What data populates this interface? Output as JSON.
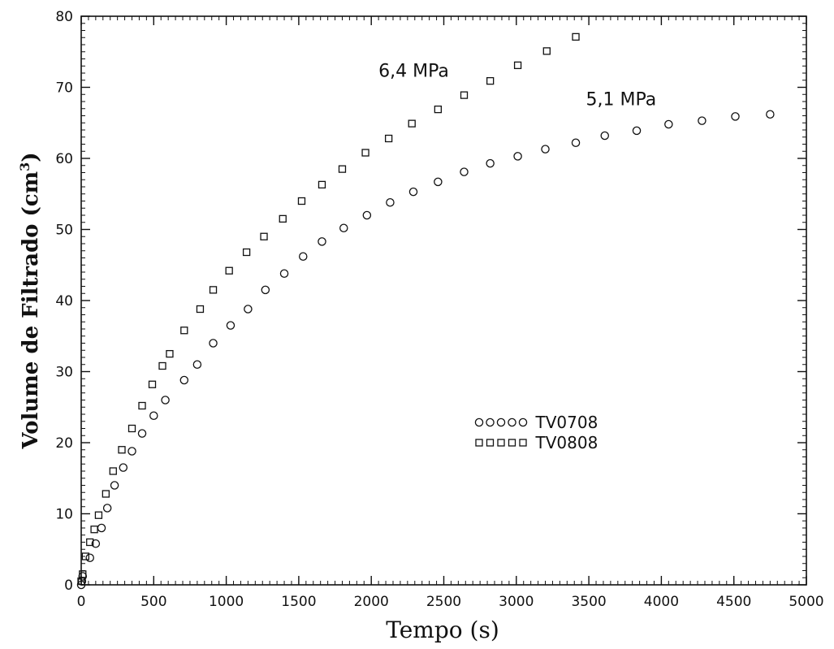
{
  "chart_data": {
    "type": "scatter",
    "title": "",
    "xlabel": "Tempo (s)",
    "ylabel": "Volume de Filtrado (cm3)",
    "ylabel_base": "Volume de Filtrado (cm",
    "ylabel_sup": "3",
    "ylabel_close": ")",
    "xlim": [
      0,
      5000
    ],
    "ylim": [
      0,
      80
    ],
    "xticks": [
      0,
      500,
      1000,
      1500,
      2000,
      2500,
      3000,
      3500,
      4000,
      4500,
      5000
    ],
    "yticks": [
      0,
      10,
      20,
      30,
      40,
      50,
      60,
      70,
      80
    ],
    "grid": false,
    "legend_position": "center-right",
    "annotations": [
      {
        "text": "6,4  MPa",
        "x": 2050,
        "y": 71.5
      },
      {
        "text": "5,1  MPa",
        "x": 3480,
        "y": 67.5
      }
    ],
    "series": [
      {
        "name": "TV0708",
        "legend_label": "TV0708",
        "marker": "circle",
        "x": [
          0,
          5,
          10,
          60,
          100,
          140,
          180,
          230,
          290,
          350,
          420,
          500,
          580,
          710,
          800,
          910,
          1030,
          1150,
          1270,
          1400,
          1530,
          1660,
          1810,
          1970,
          2130,
          2290,
          2460,
          2640,
          2820,
          3010,
          3200,
          3410,
          3610,
          3830,
          4050,
          4280,
          4510,
          4750
        ],
        "y": [
          0,
          0.5,
          1.2,
          3.8,
          5.8,
          8,
          10.8,
          14,
          16.5,
          18.8,
          21.3,
          23.8,
          26,
          28.8,
          31,
          34,
          36.5,
          38.8,
          41.5,
          43.8,
          46.2,
          48.3,
          50.2,
          52,
          53.8,
          55.3,
          56.7,
          58.1,
          59.3,
          60.3,
          61.3,
          62.2,
          63.2,
          63.9,
          64.8,
          65.3,
          65.9,
          66.2
        ]
      },
      {
        "name": "TV0808",
        "legend_label": "TV0808",
        "marker": "square",
        "x": [
          0,
          10,
          30,
          60,
          90,
          120,
          170,
          220,
          280,
          350,
          420,
          490,
          560,
          610,
          710,
          820,
          910,
          1020,
          1140,
          1260,
          1390,
          1520,
          1660,
          1800,
          1960,
          2120,
          2280,
          2460,
          2640,
          2820,
          3010,
          3210,
          3410
        ],
        "y": [
          0.5,
          1.5,
          4,
          6,
          7.8,
          9.8,
          12.8,
          16,
          19,
          22,
          25.2,
          28.2,
          30.8,
          32.5,
          35.8,
          38.8,
          41.5,
          44.2,
          46.8,
          49,
          51.5,
          54,
          56.3,
          58.5,
          60.8,
          62.8,
          64.9,
          66.9,
          68.9,
          70.9,
          73.1,
          75.1,
          77.1
        ]
      }
    ]
  }
}
